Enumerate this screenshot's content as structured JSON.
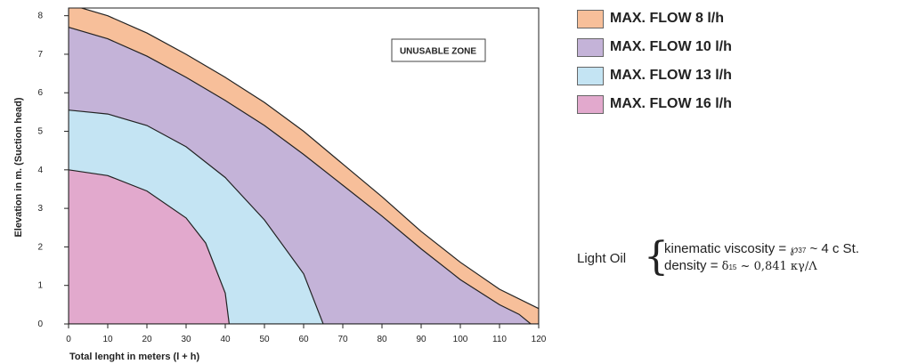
{
  "chart_data": {
    "type": "area",
    "xlabel": "Total lenght in meters (l + h)",
    "ylabel": "Elevation in m. (Suction head)",
    "xlim": [
      0,
      120
    ],
    "ylim": [
      0,
      8.2
    ],
    "x_ticks": [
      "0",
      "10",
      "20",
      "30",
      "40",
      "50",
      "60",
      "70",
      "80",
      "90",
      "100",
      "110",
      "120"
    ],
    "y_ticks": [
      "0",
      "1",
      "2",
      "3",
      "4",
      "5",
      "6",
      "7",
      "8"
    ],
    "grid": false,
    "legend_position": "right",
    "annotation": "UNUSABLE ZONE",
    "series": [
      {
        "name": "MAX. FLOW 8 l/h",
        "color": "#f7bf9a",
        "points": [
          [
            0,
            8.3
          ],
          [
            10,
            8.0
          ],
          [
            20,
            7.55
          ],
          [
            30,
            7.0
          ],
          [
            40,
            6.4
          ],
          [
            50,
            5.75
          ],
          [
            60,
            5.0
          ],
          [
            70,
            4.15
          ],
          [
            80,
            3.3
          ],
          [
            90,
            2.4
          ],
          [
            100,
            1.6
          ],
          [
            110,
            0.9
          ],
          [
            120,
            0.4
          ]
        ]
      },
      {
        "name": "MAX. FLOW 10 l/h",
        "color": "#c4b3d8",
        "points": [
          [
            0,
            7.7
          ],
          [
            10,
            7.4
          ],
          [
            20,
            6.95
          ],
          [
            30,
            6.4
          ],
          [
            40,
            5.8
          ],
          [
            50,
            5.15
          ],
          [
            60,
            4.4
          ],
          [
            70,
            3.6
          ],
          [
            80,
            2.8
          ],
          [
            90,
            1.95
          ],
          [
            100,
            1.15
          ],
          [
            110,
            0.5
          ],
          [
            115,
            0.25
          ],
          [
            118,
            0
          ]
        ]
      },
      {
        "name": "MAX. FLOW 13 l/h",
        "color": "#c4e4f3",
        "points": [
          [
            0,
            5.55
          ],
          [
            10,
            5.45
          ],
          [
            20,
            5.15
          ],
          [
            30,
            4.6
          ],
          [
            40,
            3.8
          ],
          [
            50,
            2.7
          ],
          [
            60,
            1.3
          ],
          [
            65,
            0
          ]
        ]
      },
      {
        "name": "MAX. FLOW 16 l/h",
        "color": "#e2a9cd",
        "points": [
          [
            0,
            4.0
          ],
          [
            10,
            3.85
          ],
          [
            20,
            3.45
          ],
          [
            30,
            2.75
          ],
          [
            35,
            2.1
          ],
          [
            40,
            0.8
          ],
          [
            41,
            0
          ]
        ]
      }
    ],
    "fluid": {
      "name": "Light Oil",
      "line1_text": "kinematic viscosity =",
      "line1_sym": "℘",
      "line1_sub": "37",
      "line1_value": "~ 4 c St.",
      "line2_text": "density =",
      "line2_sym": "δ",
      "line2_sub": "15",
      "line2_value": "~ 0,841 κγ/Λ"
    }
  }
}
